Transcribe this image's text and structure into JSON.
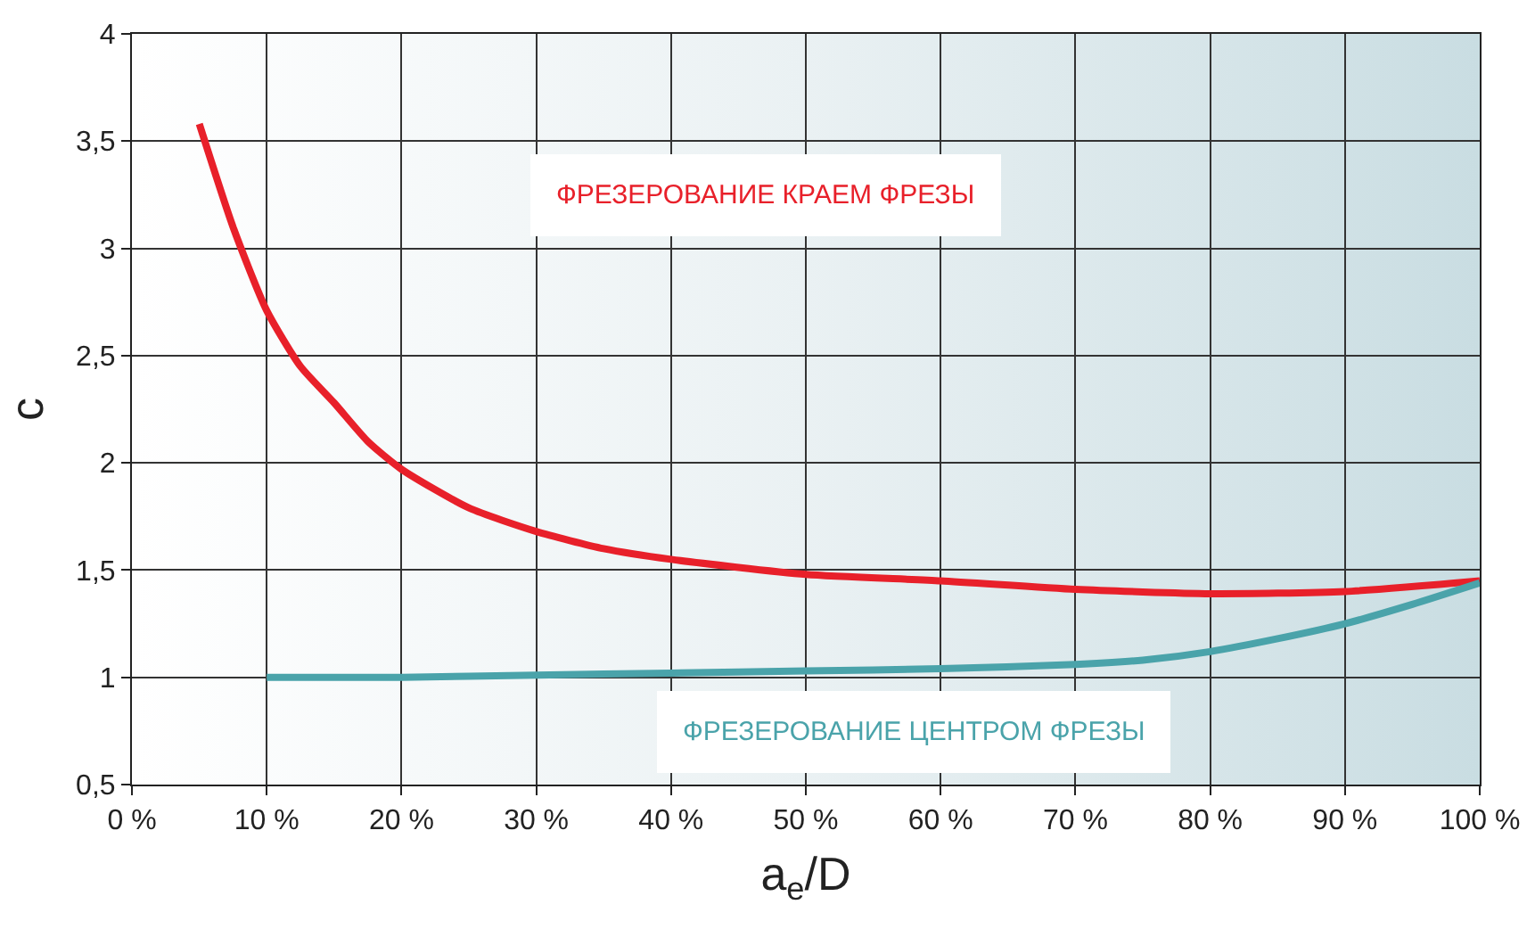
{
  "chart_data": {
    "type": "line",
    "xlabel": "a$_{e}$/D",
    "ylabel": "c",
    "xlim": [
      0,
      100
    ],
    "xticks": [
      {
        "value": 0,
        "label": "0 %"
      },
      {
        "value": 10,
        "label": "10 %"
      },
      {
        "value": 20,
        "label": "20 %"
      },
      {
        "value": 30,
        "label": "30 %"
      },
      {
        "value": 40,
        "label": "40 %"
      },
      {
        "value": 50,
        "label": "50 %"
      },
      {
        "value": 60,
        "label": "60 %"
      },
      {
        "value": 70,
        "label": "70 %"
      },
      {
        "value": 80,
        "label": "80 %"
      },
      {
        "value": 90,
        "label": "90 %"
      },
      {
        "value": 100,
        "label": "100 %"
      }
    ],
    "ylim": [
      0.5,
      4
    ],
    "yticks": [
      {
        "value": 0.5,
        "label": "0,5"
      },
      1,
      {
        "value": 1.5,
        "label": "1,5"
      },
      2,
      {
        "value": 2.5,
        "label": "2,5"
      },
      3,
      {
        "value": 3.5,
        "label": "3,5"
      },
      4
    ],
    "grid": true,
    "legend": false,
    "marker": "none",
    "line_style": "solid",
    "series": [
      {
        "name": "ФРЕЗЕРОВАНИЕ КРАЕМ ФРЕЗЫ",
        "color": "#e8202a",
        "x": [
          5,
          7.5,
          10,
          12.5,
          15,
          17.5,
          20,
          25,
          30,
          35,
          40,
          50,
          60,
          70,
          80,
          90,
          100
        ],
        "values": [
          3.58,
          3.1,
          2.71,
          2.45,
          2.28,
          2.1,
          1.97,
          1.79,
          1.68,
          1.6,
          1.55,
          1.48,
          1.45,
          1.41,
          1.39,
          1.4,
          1.45
        ]
      },
      {
        "name": "ФРЕЗЕРОВАНИЕ ЦЕНТРОМ ФРЕЗЫ",
        "color": "#4aa3aa",
        "x": [
          10,
          20,
          30,
          40,
          50,
          60,
          70,
          75,
          80,
          85,
          90,
          95,
          100
        ],
        "values": [
          1.0,
          1.0,
          1.01,
          1.02,
          1.03,
          1.04,
          1.06,
          1.08,
          1.12,
          1.18,
          1.25,
          1.34,
          1.44
        ]
      }
    ]
  }
}
